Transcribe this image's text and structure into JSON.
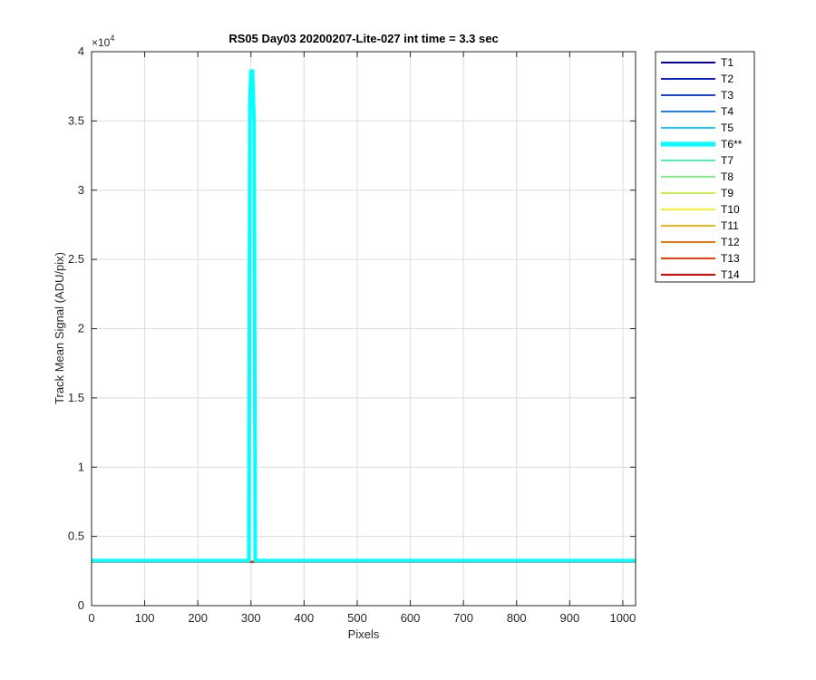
{
  "chart_data": {
    "type": "line",
    "title": "RS05 Day03 20200207-Lite-027 int time = 3.3 sec",
    "xlabel": "Pixels",
    "ylabel": "Track Mean Signal (ADU/pix)",
    "xlim": [
      0,
      1024
    ],
    "ylim": [
      0,
      40000
    ],
    "y_exponent_label": "×10",
    "y_exponent_power": "4",
    "x_ticks": [
      0,
      100,
      200,
      300,
      400,
      500,
      600,
      700,
      800,
      900,
      1000
    ],
    "x_tick_labels": [
      "0",
      "100",
      "200",
      "300",
      "400",
      "500",
      "600",
      "700",
      "800",
      "900",
      "1000"
    ],
    "y_ticks": [
      0,
      5000,
      10000,
      15000,
      20000,
      25000,
      30000,
      35000,
      40000
    ],
    "y_tick_labels": [
      "0",
      "0.5",
      "1",
      "1.5",
      "2",
      "2.5",
      "3",
      "3.5",
      "4"
    ],
    "grid": true,
    "legend_position": "outside-top-right",
    "baseline": 3200,
    "peak": {
      "series": "T6**",
      "x_start": 296,
      "x_peak": 300,
      "x_end": 308,
      "value": 38600
    },
    "series": [
      {
        "name": "T1",
        "color": "#0000aa",
        "baseline": 3200
      },
      {
        "name": "T2",
        "color": "#0a1ee6",
        "baseline": 3200
      },
      {
        "name": "T3",
        "color": "#1446e6",
        "baseline": 3200
      },
      {
        "name": "T4",
        "color": "#1e82e6",
        "baseline": 3200
      },
      {
        "name": "T5",
        "color": "#28c3f0",
        "baseline": 3200
      },
      {
        "name": "T6**",
        "color": "#00ffff",
        "baseline": 3250,
        "highlight": true
      },
      {
        "name": "T7",
        "color": "#50f0be",
        "baseline": 3200
      },
      {
        "name": "T8",
        "color": "#82f082",
        "baseline": 3200
      },
      {
        "name": "T9",
        "color": "#c3f050",
        "baseline": 3200
      },
      {
        "name": "T10",
        "color": "#f5f028",
        "baseline": 3200
      },
      {
        "name": "T11",
        "color": "#f0b41e",
        "baseline": 3200
      },
      {
        "name": "T12",
        "color": "#f07814",
        "baseline": 3200
      },
      {
        "name": "T13",
        "color": "#f03c0a",
        "baseline": 3150
      },
      {
        "name": "T14",
        "color": "#e60000",
        "baseline": 3150
      }
    ]
  }
}
